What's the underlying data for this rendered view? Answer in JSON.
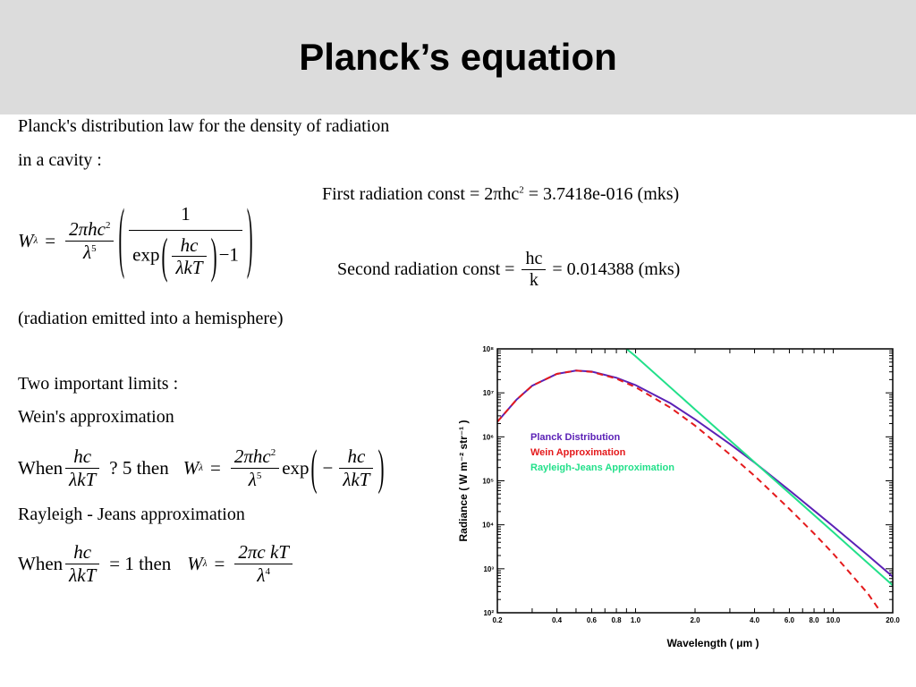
{
  "title": "Planck’s equation",
  "intro": {
    "line1": "Planck's distribution law for the density of  radiation",
    "line2": " in a cavity :"
  },
  "main_formula": {
    "lhs": "W",
    "lhs_sub": "λ",
    "equals": "=",
    "num1": "2πhc",
    "num1_sup": "2",
    "den1": "λ",
    "den1_sup": "5",
    "inner_num": "1",
    "exp": "exp",
    "hc": "hc",
    "lambda_kT": "λkT",
    "minus_one": "−1"
  },
  "first_const": {
    "label": "First radiation const = 2πhc",
    "sup": "2",
    "value": " = 3.7418e-016 (mks)"
  },
  "second_const": {
    "label": "Second radiation const =",
    "num": "hc",
    "den": "k",
    "value": "= 0.014388 (mks)"
  },
  "hemisphere_note": "(radiation emitted into a hemisphere)",
  "limits_heading": "Two important limits :",
  "wein": {
    "heading": "Wein's approximation",
    "when": "When",
    "num": "hc",
    "den": "λkT",
    "relation": "?   5  then",
    "lhs": "W",
    "lhs_sub": "λ",
    "equals": "=",
    "num2": "2πhc",
    "num2_sup": "2",
    "den2": "λ",
    "den2_sup": "5",
    "exp": "exp",
    "minus": "−",
    "num3": "hc",
    "den3": "λkT"
  },
  "rayleigh": {
    "heading": "Rayleigh - Jeans approximation",
    "when": "When",
    "num": "hc",
    "den": "λkT",
    "relation": "=  1  then",
    "lhs": "W",
    "lhs_sub": "λ",
    "equals": "=",
    "num2": "2πc kT",
    "den2": "λ",
    "den2_sup": "4"
  },
  "chart_data": {
    "type": "line",
    "xlabel": "Wavelength ( μm )",
    "ylabel": "Radiance ( W m⁻² str⁻¹ )",
    "x_scale": "log",
    "y_scale": "log",
    "xlim": [
      0.2,
      20.0
    ],
    "ylim": [
      100,
      100000000
    ],
    "x_ticks": [
      "0.2",
      "0.4",
      "0.6",
      "0.8",
      "1.0",
      "2.0",
      "4.0",
      "6.0",
      "8.0",
      "10.0",
      "20.0"
    ],
    "y_ticks": [
      "10²",
      "10³",
      "10⁴",
      "10⁵",
      "10⁶",
      "10⁷",
      "10⁸"
    ],
    "legend_placement": "center",
    "series": [
      {
        "name": "Planck Distribution",
        "color": "#5b21b6",
        "style": "solid",
        "x": [
          0.2,
          0.25,
          0.3,
          0.4,
          0.5,
          0.6,
          0.8,
          1.0,
          1.5,
          2.0,
          3.0,
          4.0,
          6.0,
          8.0,
          10.0,
          15.0,
          20.0
        ],
        "y": [
          2200000,
          7000000,
          14500000,
          27000000,
          32000000,
          30500000,
          22000000,
          15000000,
          5800000,
          2500000,
          690000,
          260000,
          61000,
          21000,
          9200,
          2000,
          660
        ]
      },
      {
        "name": "Wein Approximation",
        "color": "#e41a1c",
        "style": "dashed",
        "x": [
          0.2,
          0.25,
          0.3,
          0.4,
          0.5,
          0.6,
          0.8,
          1.0,
          1.5,
          2.0,
          3.0,
          4.0,
          6.0,
          8.0,
          10.0,
          15.0,
          17.0
        ],
        "y": [
          2200000,
          7000000,
          14500000,
          27000000,
          32000000,
          30000000,
          21000000,
          13500000,
          4600000,
          1800000,
          400000,
          130000,
          23000,
          6300,
          2200,
          270,
          120
        ]
      },
      {
        "name": "Rayleigh-Jeans Approximation",
        "color": "#22e08a",
        "style": "solid",
        "x": [
          0.9,
          1.0,
          2.0,
          4.0,
          10.0,
          20.0
        ],
        "y": [
          100000000,
          68000000,
          4200000,
          265000,
          6800,
          420
        ]
      }
    ]
  }
}
